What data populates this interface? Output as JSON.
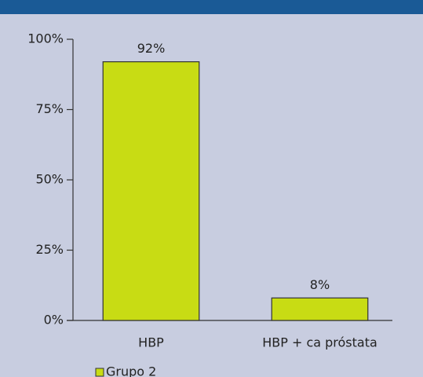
{
  "chart_data": {
    "type": "bar",
    "categories": [
      "HBP",
      "HBP + ca próstata"
    ],
    "series": [
      {
        "name": "Grupo 2",
        "color": "#c8dc14",
        "values": [
          92,
          8
        ],
        "value_labels": [
          "92%",
          "8%"
        ]
      }
    ],
    "ylim": [
      0,
      100
    ],
    "yticks": [
      {
        "value": 0,
        "label": "0%"
      },
      {
        "value": 25,
        "label": "25%"
      },
      {
        "value": 50,
        "label": "50%"
      },
      {
        "value": 75,
        "label": "75%"
      },
      {
        "value": 100,
        "label": "100%"
      }
    ],
    "legend": "bottom-left"
  }
}
